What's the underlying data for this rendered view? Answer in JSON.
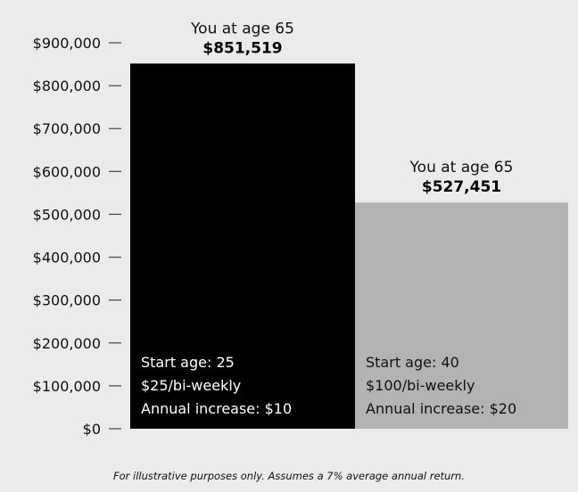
{
  "chart_data": {
    "type": "bar",
    "ylim": [
      0,
      900000
    ],
    "y_ticks": [
      "$0",
      "$100,000",
      "$200,000",
      "$300,000",
      "$400,000",
      "$500,000",
      "$600,000",
      "$700,000",
      "$800,000",
      "$900,000"
    ],
    "grid": false,
    "bars": [
      {
        "value": 851519,
        "color": "#000000",
        "text_color": "#ffffff",
        "top_label": "You at age 65",
        "value_label": "$851,519",
        "notes": [
          "Start age: 25",
          "$25/bi-weekly",
          "Annual increase: $10"
        ]
      },
      {
        "value": 527451,
        "color": "#b3b3b3",
        "text_color": "#111111",
        "top_label": "You at age 65",
        "value_label": "$527,451",
        "notes": [
          "Start age: 40",
          "$100/bi-weekly",
          "Annual increase: $20"
        ]
      }
    ]
  },
  "footnote": "For illustrative purposes only. Assumes a 7% average annual return."
}
